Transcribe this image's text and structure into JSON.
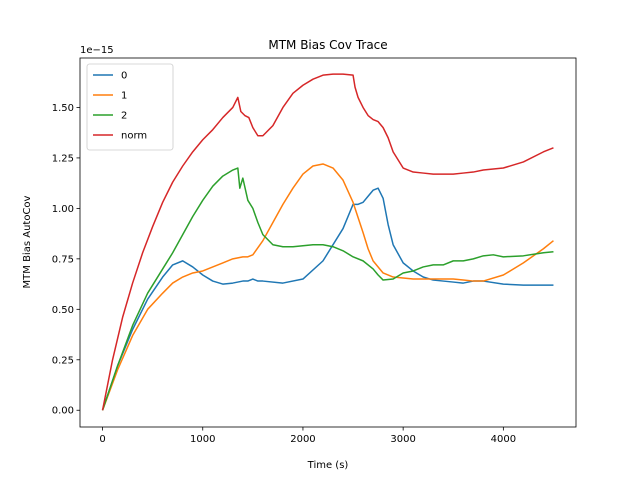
{
  "chart_data": {
    "type": "line",
    "title": "MTM Bias Cov Trace",
    "xlabel": "Time (s)",
    "ylabel": "MTM Bias AutoCov",
    "y_offset_text": "1e−15",
    "xlim": [
      -225,
      4725
    ],
    "ylim": [
      -0.083,
      1.745
    ],
    "x_ticks": [
      0,
      1000,
      2000,
      3000,
      4000
    ],
    "x_tick_labels": [
      "0",
      "1000",
      "2000",
      "3000",
      "4000"
    ],
    "y_ticks": [
      0.0,
      0.25,
      0.5,
      0.75,
      1.0,
      1.25,
      1.5
    ],
    "y_tick_labels": [
      "0.00",
      "0.25",
      "0.50",
      "0.75",
      "1.00",
      "1.25",
      "1.50"
    ],
    "grid": false,
    "legend_position": "upper-left",
    "series": [
      {
        "name": "0",
        "color": "#1f77b4",
        "x": [
          0,
          150,
          300,
          450,
          600,
          700,
          800,
          900,
          1000,
          1100,
          1200,
          1300,
          1400,
          1450,
          1500,
          1550,
          1600,
          1800,
          2000,
          2200,
          2400,
          2500,
          2550,
          2600,
          2650,
          2700,
          2750,
          2800,
          2850,
          2900,
          3000,
          3100,
          3200,
          3300,
          3400,
          3500,
          3600,
          3700,
          3800,
          4000,
          4200,
          4500
        ],
        "y": [
          0.0,
          0.22,
          0.4,
          0.55,
          0.66,
          0.72,
          0.74,
          0.71,
          0.67,
          0.64,
          0.625,
          0.63,
          0.64,
          0.64,
          0.65,
          0.64,
          0.64,
          0.63,
          0.65,
          0.74,
          0.9,
          1.02,
          1.02,
          1.03,
          1.06,
          1.09,
          1.1,
          1.05,
          0.92,
          0.82,
          0.73,
          0.69,
          0.66,
          0.645,
          0.64,
          0.635,
          0.63,
          0.64,
          0.64,
          0.625,
          0.62,
          0.62
        ]
      },
      {
        "name": "1",
        "color": "#ff7f0e",
        "x": [
          0,
          150,
          300,
          450,
          600,
          700,
          800,
          900,
          1000,
          1100,
          1200,
          1300,
          1400,
          1450,
          1500,
          1600,
          1700,
          1800,
          1900,
          2000,
          2100,
          2200,
          2300,
          2400,
          2500,
          2600,
          2650,
          2700,
          2800,
          2900,
          3000,
          3100,
          3200,
          3300,
          3400,
          3500,
          3600,
          3700,
          3800,
          4000,
          4200,
          4400,
          4500
        ],
        "y": [
          0.0,
          0.2,
          0.37,
          0.5,
          0.58,
          0.63,
          0.66,
          0.68,
          0.69,
          0.71,
          0.73,
          0.75,
          0.76,
          0.76,
          0.77,
          0.84,
          0.93,
          1.02,
          1.1,
          1.17,
          1.21,
          1.22,
          1.2,
          1.14,
          1.03,
          0.88,
          0.8,
          0.74,
          0.68,
          0.66,
          0.655,
          0.65,
          0.65,
          0.65,
          0.65,
          0.65,
          0.645,
          0.64,
          0.64,
          0.67,
          0.73,
          0.8,
          0.84
        ]
      },
      {
        "name": "2",
        "color": "#2ca02c",
        "x": [
          0,
          150,
          300,
          450,
          600,
          700,
          800,
          900,
          1000,
          1100,
          1200,
          1300,
          1350,
          1370,
          1400,
          1450,
          1500,
          1550,
          1600,
          1700,
          1800,
          1900,
          2000,
          2100,
          2200,
          2300,
          2400,
          2500,
          2600,
          2700,
          2750,
          2800,
          2900,
          3000,
          3100,
          3200,
          3300,
          3400,
          3500,
          3600,
          3700,
          3800,
          3900,
          4000,
          4200,
          4400,
          4500
        ],
        "y": [
          0.0,
          0.22,
          0.42,
          0.58,
          0.7,
          0.78,
          0.87,
          0.96,
          1.04,
          1.11,
          1.16,
          1.19,
          1.2,
          1.1,
          1.15,
          1.04,
          1.0,
          0.93,
          0.87,
          0.82,
          0.81,
          0.81,
          0.815,
          0.82,
          0.82,
          0.81,
          0.79,
          0.76,
          0.74,
          0.7,
          0.67,
          0.645,
          0.65,
          0.68,
          0.69,
          0.71,
          0.72,
          0.72,
          0.74,
          0.74,
          0.75,
          0.765,
          0.77,
          0.76,
          0.765,
          0.78,
          0.785
        ]
      },
      {
        "name": "norm",
        "color": "#d62728",
        "x": [
          0,
          100,
          200,
          300,
          400,
          500,
          600,
          700,
          800,
          900,
          1000,
          1100,
          1200,
          1300,
          1350,
          1380,
          1420,
          1460,
          1500,
          1550,
          1600,
          1700,
          1800,
          1900,
          2000,
          2100,
          2200,
          2300,
          2400,
          2500,
          2520,
          2550,
          2600,
          2650,
          2700,
          2750,
          2800,
          2850,
          2900,
          3000,
          3100,
          3200,
          3300,
          3400,
          3500,
          3600,
          3700,
          3800,
          4000,
          4200,
          4400,
          4500
        ],
        "y": [
          0.0,
          0.25,
          0.46,
          0.63,
          0.78,
          0.91,
          1.03,
          1.13,
          1.21,
          1.28,
          1.34,
          1.39,
          1.45,
          1.5,
          1.55,
          1.48,
          1.46,
          1.45,
          1.4,
          1.36,
          1.36,
          1.41,
          1.5,
          1.57,
          1.61,
          1.64,
          1.66,
          1.665,
          1.665,
          1.66,
          1.6,
          1.55,
          1.5,
          1.46,
          1.44,
          1.43,
          1.4,
          1.35,
          1.28,
          1.2,
          1.18,
          1.175,
          1.17,
          1.17,
          1.17,
          1.175,
          1.18,
          1.19,
          1.2,
          1.23,
          1.28,
          1.3
        ]
      }
    ]
  }
}
